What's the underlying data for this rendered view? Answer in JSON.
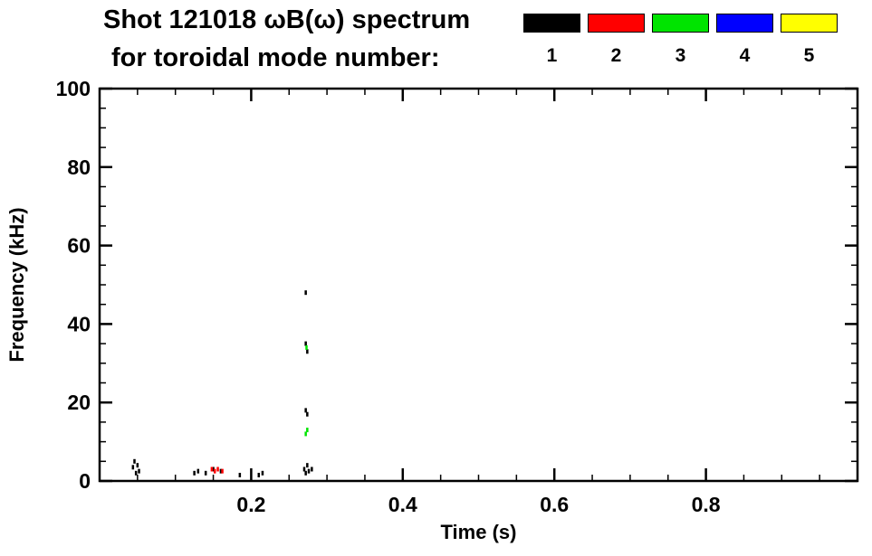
{
  "title": {
    "line1": "Shot 121018 ωB(ω) spectrum",
    "line2": "for toroidal mode number:"
  },
  "legend": {
    "items": [
      {
        "label": "1",
        "color": "#000000"
      },
      {
        "label": "2",
        "color": "#ff0000"
      },
      {
        "label": "3",
        "color": "#00e400"
      },
      {
        "label": "4",
        "color": "#0000ff"
      },
      {
        "label": "5",
        "color": "#ffff00"
      }
    ]
  },
  "chart_data": {
    "type": "scatter",
    "title": "Shot 121018 ωB(ω) spectrum for toroidal mode number:",
    "xlabel": "Time (s)",
    "ylabel": "Frequency (kHz)",
    "xlim": [
      0,
      1.0
    ],
    "ylim": [
      0,
      100
    ],
    "x_major_ticks": [
      0.2,
      0.4,
      0.6,
      0.8
    ],
    "x_minor_step": 0.05,
    "y_major_ticks": [
      0,
      20,
      40,
      60,
      80,
      100
    ],
    "y_minor_step": 5,
    "grid": false,
    "legend_position": "top-right",
    "series": [
      {
        "name": "n1",
        "color": "#000000",
        "points": [
          [
            0.044,
            3.5
          ],
          [
            0.046,
            5
          ],
          [
            0.048,
            2
          ],
          [
            0.05,
            4
          ],
          [
            0.052,
            2.5
          ],
          [
            0.125,
            2
          ],
          [
            0.13,
            2.5
          ],
          [
            0.14,
            2
          ],
          [
            0.15,
            3
          ],
          [
            0.16,
            2.5
          ],
          [
            0.185,
            1.5
          ],
          [
            0.21,
            1.5
          ],
          [
            0.215,
            2
          ],
          [
            0.272,
            48
          ],
          [
            0.272,
            35
          ],
          [
            0.274,
            33
          ],
          [
            0.272,
            18
          ],
          [
            0.274,
            17
          ],
          [
            0.27,
            3
          ],
          [
            0.272,
            2
          ],
          [
            0.274,
            4
          ],
          [
            0.276,
            2.5
          ],
          [
            0.28,
            3
          ]
        ]
      },
      {
        "name": "n2",
        "color": "#ff0000",
        "points": [
          [
            0.148,
            3
          ],
          [
            0.152,
            2.5
          ],
          [
            0.156,
            3
          ],
          [
            0.162,
            2.5
          ]
        ]
      },
      {
        "name": "n3",
        "color": "#00e400",
        "points": [
          [
            0.272,
            12
          ],
          [
            0.274,
            13
          ],
          [
            0.273,
            34
          ]
        ]
      },
      {
        "name": "n4",
        "color": "#0000ff",
        "points": []
      },
      {
        "name": "n5",
        "color": "#ffff00",
        "points": []
      }
    ]
  }
}
